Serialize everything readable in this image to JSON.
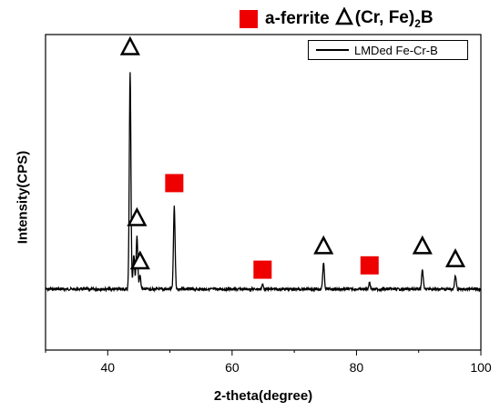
{
  "chart_data": {
    "type": "line",
    "xlabel": "2-theta(degree)",
    "ylabel": "Intensity(CPS)",
    "xlim": [
      30,
      100
    ],
    "x_ticks": [
      "40",
      "60",
      "80",
      "100"
    ],
    "grid": false,
    "phase_legend": {
      "ferrite": "a-ferrite",
      "boride_prefix": "(Cr, Fe)",
      "boride_sub": "2",
      "boride_suffix": "B",
      "ferrite_color": "#ee0000"
    },
    "series": [
      {
        "name": "LMDed Fe-Cr-B",
        "color": "#000000",
        "baseline": 0,
        "peaks": [
          {
            "x": 43.6,
            "height": 1.0
          },
          {
            "x": 44.2,
            "height": 0.16
          },
          {
            "x": 44.7,
            "height": 0.25
          },
          {
            "x": 45.2,
            "height": 0.06
          },
          {
            "x": 50.7,
            "height": 0.38
          },
          {
            "x": 64.9,
            "height": 0.02
          },
          {
            "x": 74.7,
            "height": 0.12
          },
          {
            "x": 82.1,
            "height": 0.03
          },
          {
            "x": 90.6,
            "height": 0.09
          },
          {
            "x": 95.9,
            "height": 0.06
          }
        ]
      }
    ],
    "markers": [
      {
        "phase": "boride",
        "shape": "triangle",
        "x": 43.6,
        "y": 1.12
      },
      {
        "phase": "boride",
        "shape": "triangle",
        "x": 44.7,
        "y": 0.33
      },
      {
        "phase": "boride",
        "shape": "triangle",
        "x": 45.2,
        "y": 0.13
      },
      {
        "phase": "ferrite",
        "shape": "square",
        "x": 50.7,
        "y": 0.49
      },
      {
        "phase": "ferrite",
        "shape": "square",
        "x": 64.9,
        "y": 0.09
      },
      {
        "phase": "boride",
        "shape": "triangle",
        "x": 74.7,
        "y": 0.2
      },
      {
        "phase": "ferrite",
        "shape": "square",
        "x": 82.1,
        "y": 0.11
      },
      {
        "phase": "boride",
        "shape": "triangle",
        "x": 90.6,
        "y": 0.2
      },
      {
        "phase": "boride",
        "shape": "triangle",
        "x": 95.9,
        "y": 0.14
      }
    ]
  }
}
